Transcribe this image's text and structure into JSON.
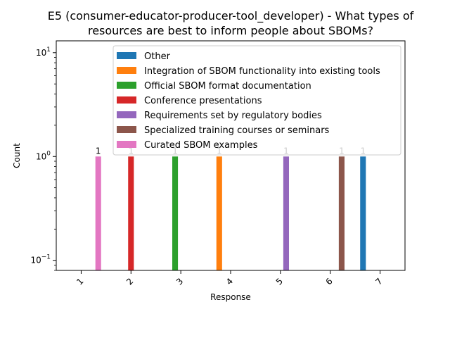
{
  "chart_data": {
    "type": "bar",
    "title_line1": "E5 (consumer-educator-producer-tool_developer) - What types of",
    "title_line2": "resources are best to inform people about SBOMs?",
    "xlabel": "Response",
    "ylabel": "Count",
    "yscale": "log",
    "ylim": [
      0.08,
      13
    ],
    "categories": [
      "1",
      "2",
      "3",
      "4",
      "5",
      "6",
      "7"
    ],
    "legend_position": "upper-right",
    "y_ticks": [
      {
        "value": 0.1,
        "base": "10",
        "exp": "−1"
      },
      {
        "value": 1,
        "base": "10",
        "exp": "0"
      },
      {
        "value": 10,
        "base": "10",
        "exp": "1"
      }
    ],
    "series": [
      {
        "name": "Other",
        "color": "#1f77b4",
        "values": [
          0,
          0,
          0,
          0,
          0,
          0,
          1
        ]
      },
      {
        "name": "Integration of SBOM functionality into existing tools",
        "color": "#ff7f0e",
        "values": [
          0,
          0,
          0,
          1,
          0,
          0,
          0
        ]
      },
      {
        "name": "Official SBOM format documentation",
        "color": "#2ca02c",
        "values": [
          0,
          0,
          1,
          0,
          0,
          0,
          0
        ]
      },
      {
        "name": "Conference presentations",
        "color": "#d62728",
        "values": [
          0,
          1,
          0,
          0,
          0,
          0,
          0
        ]
      },
      {
        "name": "Requirements set by regulatory bodies",
        "color": "#9467bd",
        "values": [
          0,
          0,
          0,
          0,
          1,
          0,
          0
        ]
      },
      {
        "name": "Specialized training courses or seminars",
        "color": "#8c564b",
        "values": [
          0,
          0,
          0,
          0,
          0,
          1,
          0
        ]
      },
      {
        "name": "Curated SBOM examples",
        "color": "#e377c2",
        "values": [
          1,
          0,
          0,
          0,
          0,
          0,
          0
        ]
      }
    ]
  }
}
